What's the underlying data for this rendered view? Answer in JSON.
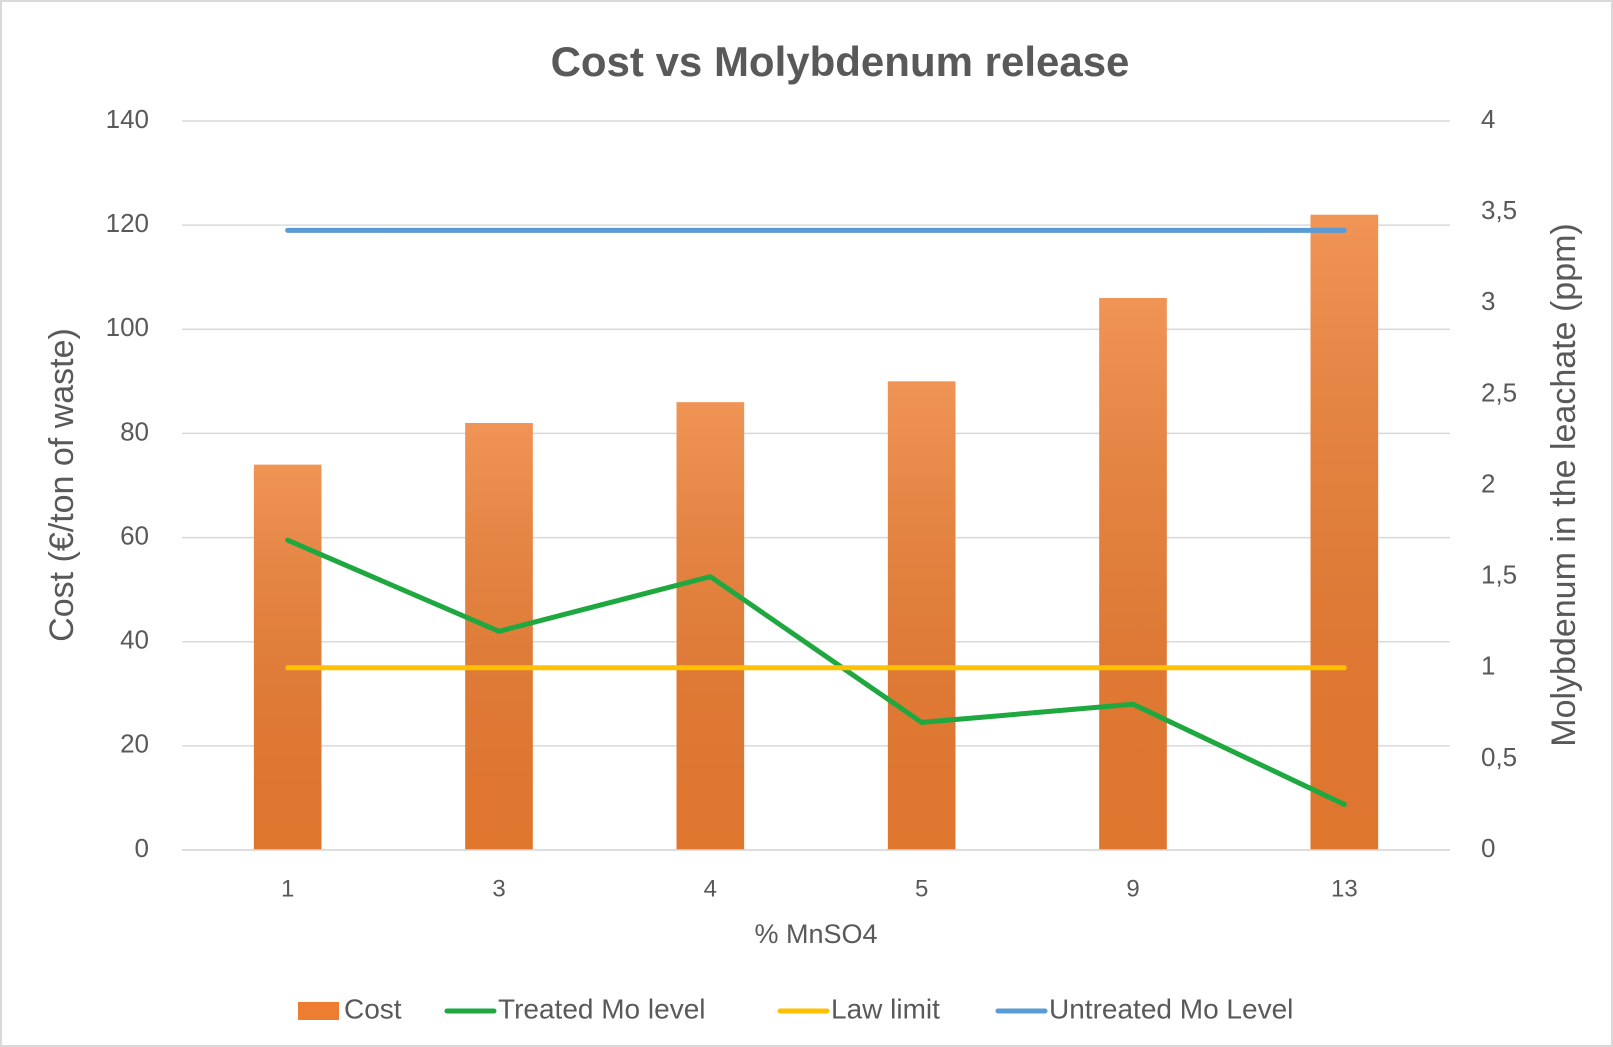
{
  "chart_data": {
    "type": "bar",
    "title": "Cost vs Molybdenum release",
    "x_label": "% MnSO4",
    "y_label": "Cost (€/ton of waste)",
    "y2_label": "Molybdenum in the leachate (ppm)",
    "categories": [
      "1",
      "3",
      "4",
      "5",
      "9",
      "13"
    ],
    "series": [
      {
        "name": "Cost",
        "type": "bar",
        "color": "#ed7d31",
        "values": [
          74,
          82,
          86,
          90,
          106,
          122
        ]
      },
      {
        "name": "Treated Mo level",
        "type": "line",
        "axis": "y2",
        "color": "#1fa83f",
        "values": [
          1.7,
          1.2,
          1.5,
          0.7,
          0.8,
          0.25
        ]
      },
      {
        "name": "Law limit",
        "type": "line",
        "axis": "y2",
        "color": "#ffc000",
        "values": [
          1,
          1,
          1,
          1,
          1,
          1
        ]
      },
      {
        "name": "Untreated Mo Level",
        "type": "line",
        "axis": "y2",
        "color": "#5b9bd5",
        "values": [
          3.4,
          3.4,
          3.4,
          3.4,
          3.4,
          3.4
        ]
      }
    ],
    "ylim": [
      0,
      140
    ],
    "yticks": [
      0,
      20,
      40,
      60,
      80,
      100,
      120,
      140
    ],
    "y2lim": [
      0,
      4
    ],
    "y2ticks": [
      0,
      {
        "value": 0.5,
        "label": "0,5"
      },
      1,
      {
        "value": 1.5,
        "label": "1,5"
      },
      2,
      {
        "value": 2.5,
        "label": "2,5"
      },
      3,
      {
        "value": 3.5,
        "label": "3,5"
      },
      4
    ],
    "grid": true,
    "legend": "bottom"
  }
}
